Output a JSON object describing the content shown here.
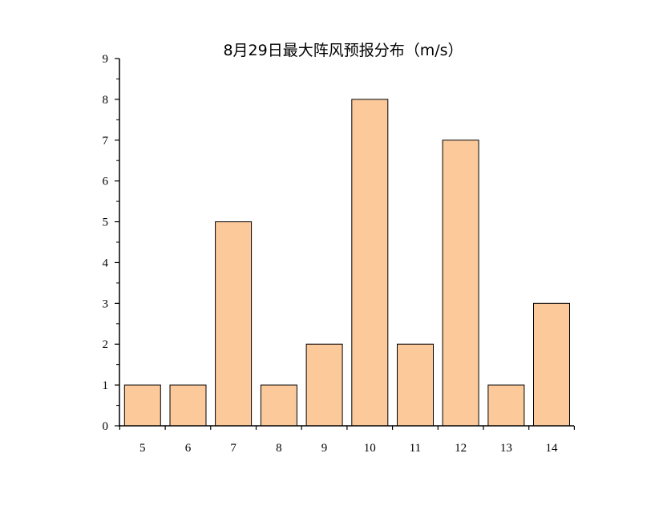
{
  "chart_data": {
    "type": "bar",
    "title": "8月29日最大阵风预报分布（m/s）",
    "xlabel": "",
    "ylabel": "",
    "categories": [
      "5",
      "6",
      "7",
      "8",
      "9",
      "10",
      "11",
      "12",
      "13",
      "14"
    ],
    "values": [
      1,
      1,
      5,
      1,
      2,
      8,
      2,
      7,
      1,
      3
    ],
    "ylim": [
      0,
      9
    ],
    "yticks": [
      "0",
      "1",
      "2",
      "3",
      "4",
      "5",
      "6",
      "7",
      "8",
      "9"
    ],
    "grid": false,
    "legend": "none",
    "bar_color": "#fcc99b",
    "bar_edge_color": "#000000"
  }
}
